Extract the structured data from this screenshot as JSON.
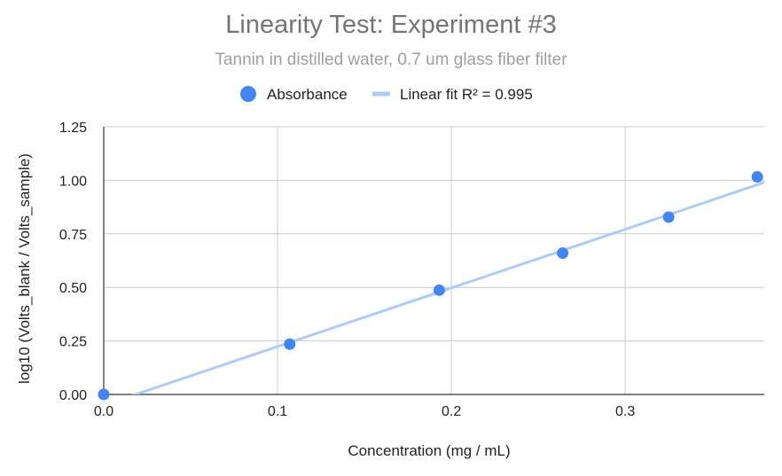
{
  "chart_data": {
    "type": "scatter",
    "title": "Linearity Test: Experiment #3",
    "subtitle": "Tannin in distilled water, 0.7 um glass fiber filter",
    "xlabel": "Concentration (mg / mL)",
    "ylabel": "log10 (Volts_blank / Volts_sample)",
    "xlim": [
      0,
      0.38
    ],
    "ylim": [
      0,
      1.25
    ],
    "x_ticks": [
      "0.0",
      "0.1",
      "0.2",
      "0.3"
    ],
    "y_ticks": [
      "0.00",
      "0.25",
      "0.50",
      "0.75",
      "1.00",
      "1.25"
    ],
    "grid": true,
    "legend_position": "top",
    "series": [
      {
        "name": "Absorbance",
        "kind": "points",
        "color": "#4285f4",
        "x": [
          0.0,
          0.107,
          0.193,
          0.264,
          0.325,
          0.376
        ],
        "y": [
          0.0,
          0.235,
          0.487,
          0.66,
          0.828,
          1.016
        ]
      },
      {
        "name": "Linear fit R² = 0.995",
        "kind": "line",
        "color": "#aecbfa",
        "x": [
          0.0,
          0.38
        ],
        "y": [
          -0.05,
          0.99
        ]
      }
    ]
  }
}
